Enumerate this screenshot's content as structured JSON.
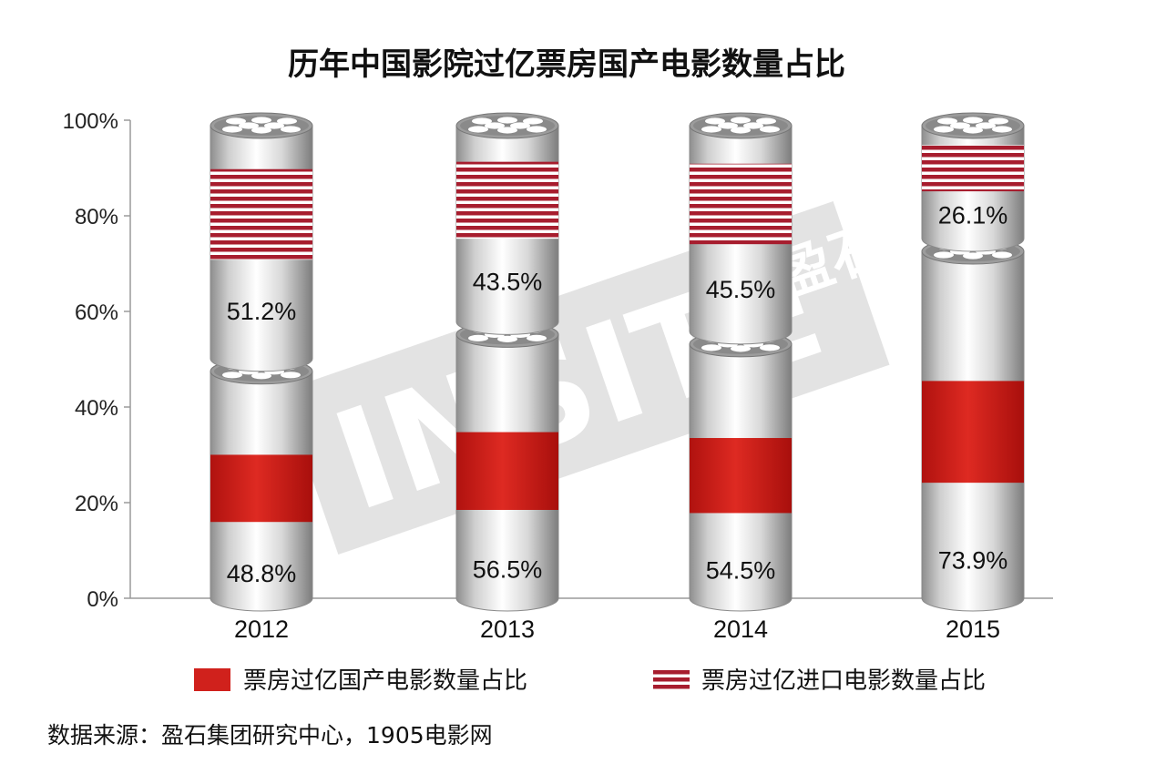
{
  "chart_data": {
    "type": "bar",
    "stacked": true,
    "title": "历年中国影院过亿票房国产电影数量占比",
    "categories": [
      "2012",
      "2013",
      "2014",
      "2015"
    ],
    "series": [
      {
        "name": "票房过亿国产电影数量占比",
        "values": [
          48.8,
          56.5,
          54.5,
          73.9
        ],
        "labels": [
          "48.8%",
          "56.5%",
          "54.5%",
          "73.9%"
        ]
      },
      {
        "name": "票房过亿进口电影数量占比",
        "values": [
          51.2,
          43.5,
          45.5,
          26.1
        ],
        "labels": [
          "51.2%",
          "43.5%",
          "45.5%",
          "26.1%"
        ]
      }
    ],
    "ylim": [
      0,
      100
    ],
    "yticks": [
      "0%",
      "20%",
      "40%",
      "60%",
      "80%",
      "100%"
    ],
    "colors": {
      "domestic": "#d0211c",
      "imported": "#a61e2e",
      "cylinder": "#c8c8c8"
    },
    "legend_position": "bottom",
    "grid": false
  },
  "source": "数据来源：盈石集团研究中心，1905电影网",
  "watermark": {
    "text": "INSITE",
    "mark": "盈石"
  }
}
